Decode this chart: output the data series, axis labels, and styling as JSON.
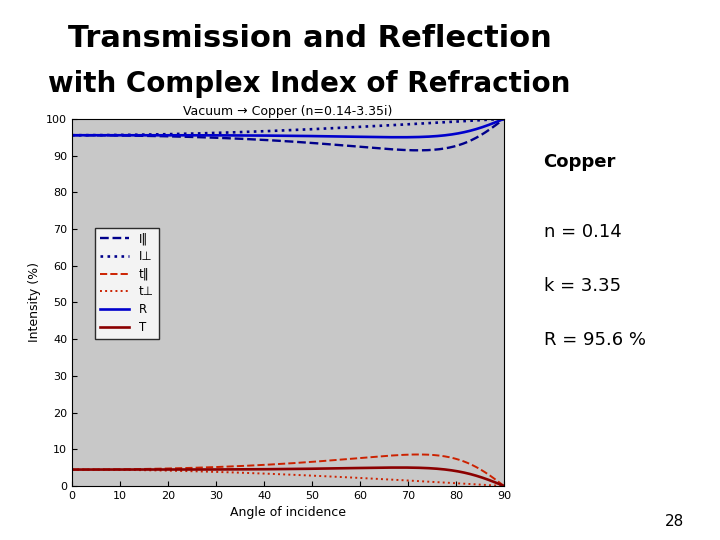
{
  "title_line1": "Transmission and Reflection",
  "title_line2": "with Complex Index of Refraction",
  "subtitle": "Vacuum → Copper (n=0.14-3.35i)",
  "xlabel": "Angle of incidence",
  "ylabel": "Intensity (%)",
  "n1": 1.0,
  "n2_real": 0.14,
  "n2_imag": 3.35,
  "xlim": [
    0,
    90
  ],
  "ylim": [
    0,
    100
  ],
  "xticks": [
    0,
    10,
    20,
    30,
    40,
    50,
    60,
    70,
    80,
    90
  ],
  "yticks": [
    0,
    10,
    20,
    30,
    40,
    50,
    60,
    70,
    80,
    90,
    100
  ],
  "bg_color": "#c8c8c8",
  "annotation_lines": [
    "Copper",
    "n = 0.14",
    "k = 3.35",
    "R = 95.6 %"
  ],
  "page_number": "28",
  "title_fontsize": 22,
  "subtitle_fontsize": 9,
  "axis_fontsize": 9,
  "annot_fontsize": 13,
  "blue": "#0000cc",
  "dark_blue": "#00008b",
  "red_color": "#cc2200",
  "dark_red": "#8b0000"
}
